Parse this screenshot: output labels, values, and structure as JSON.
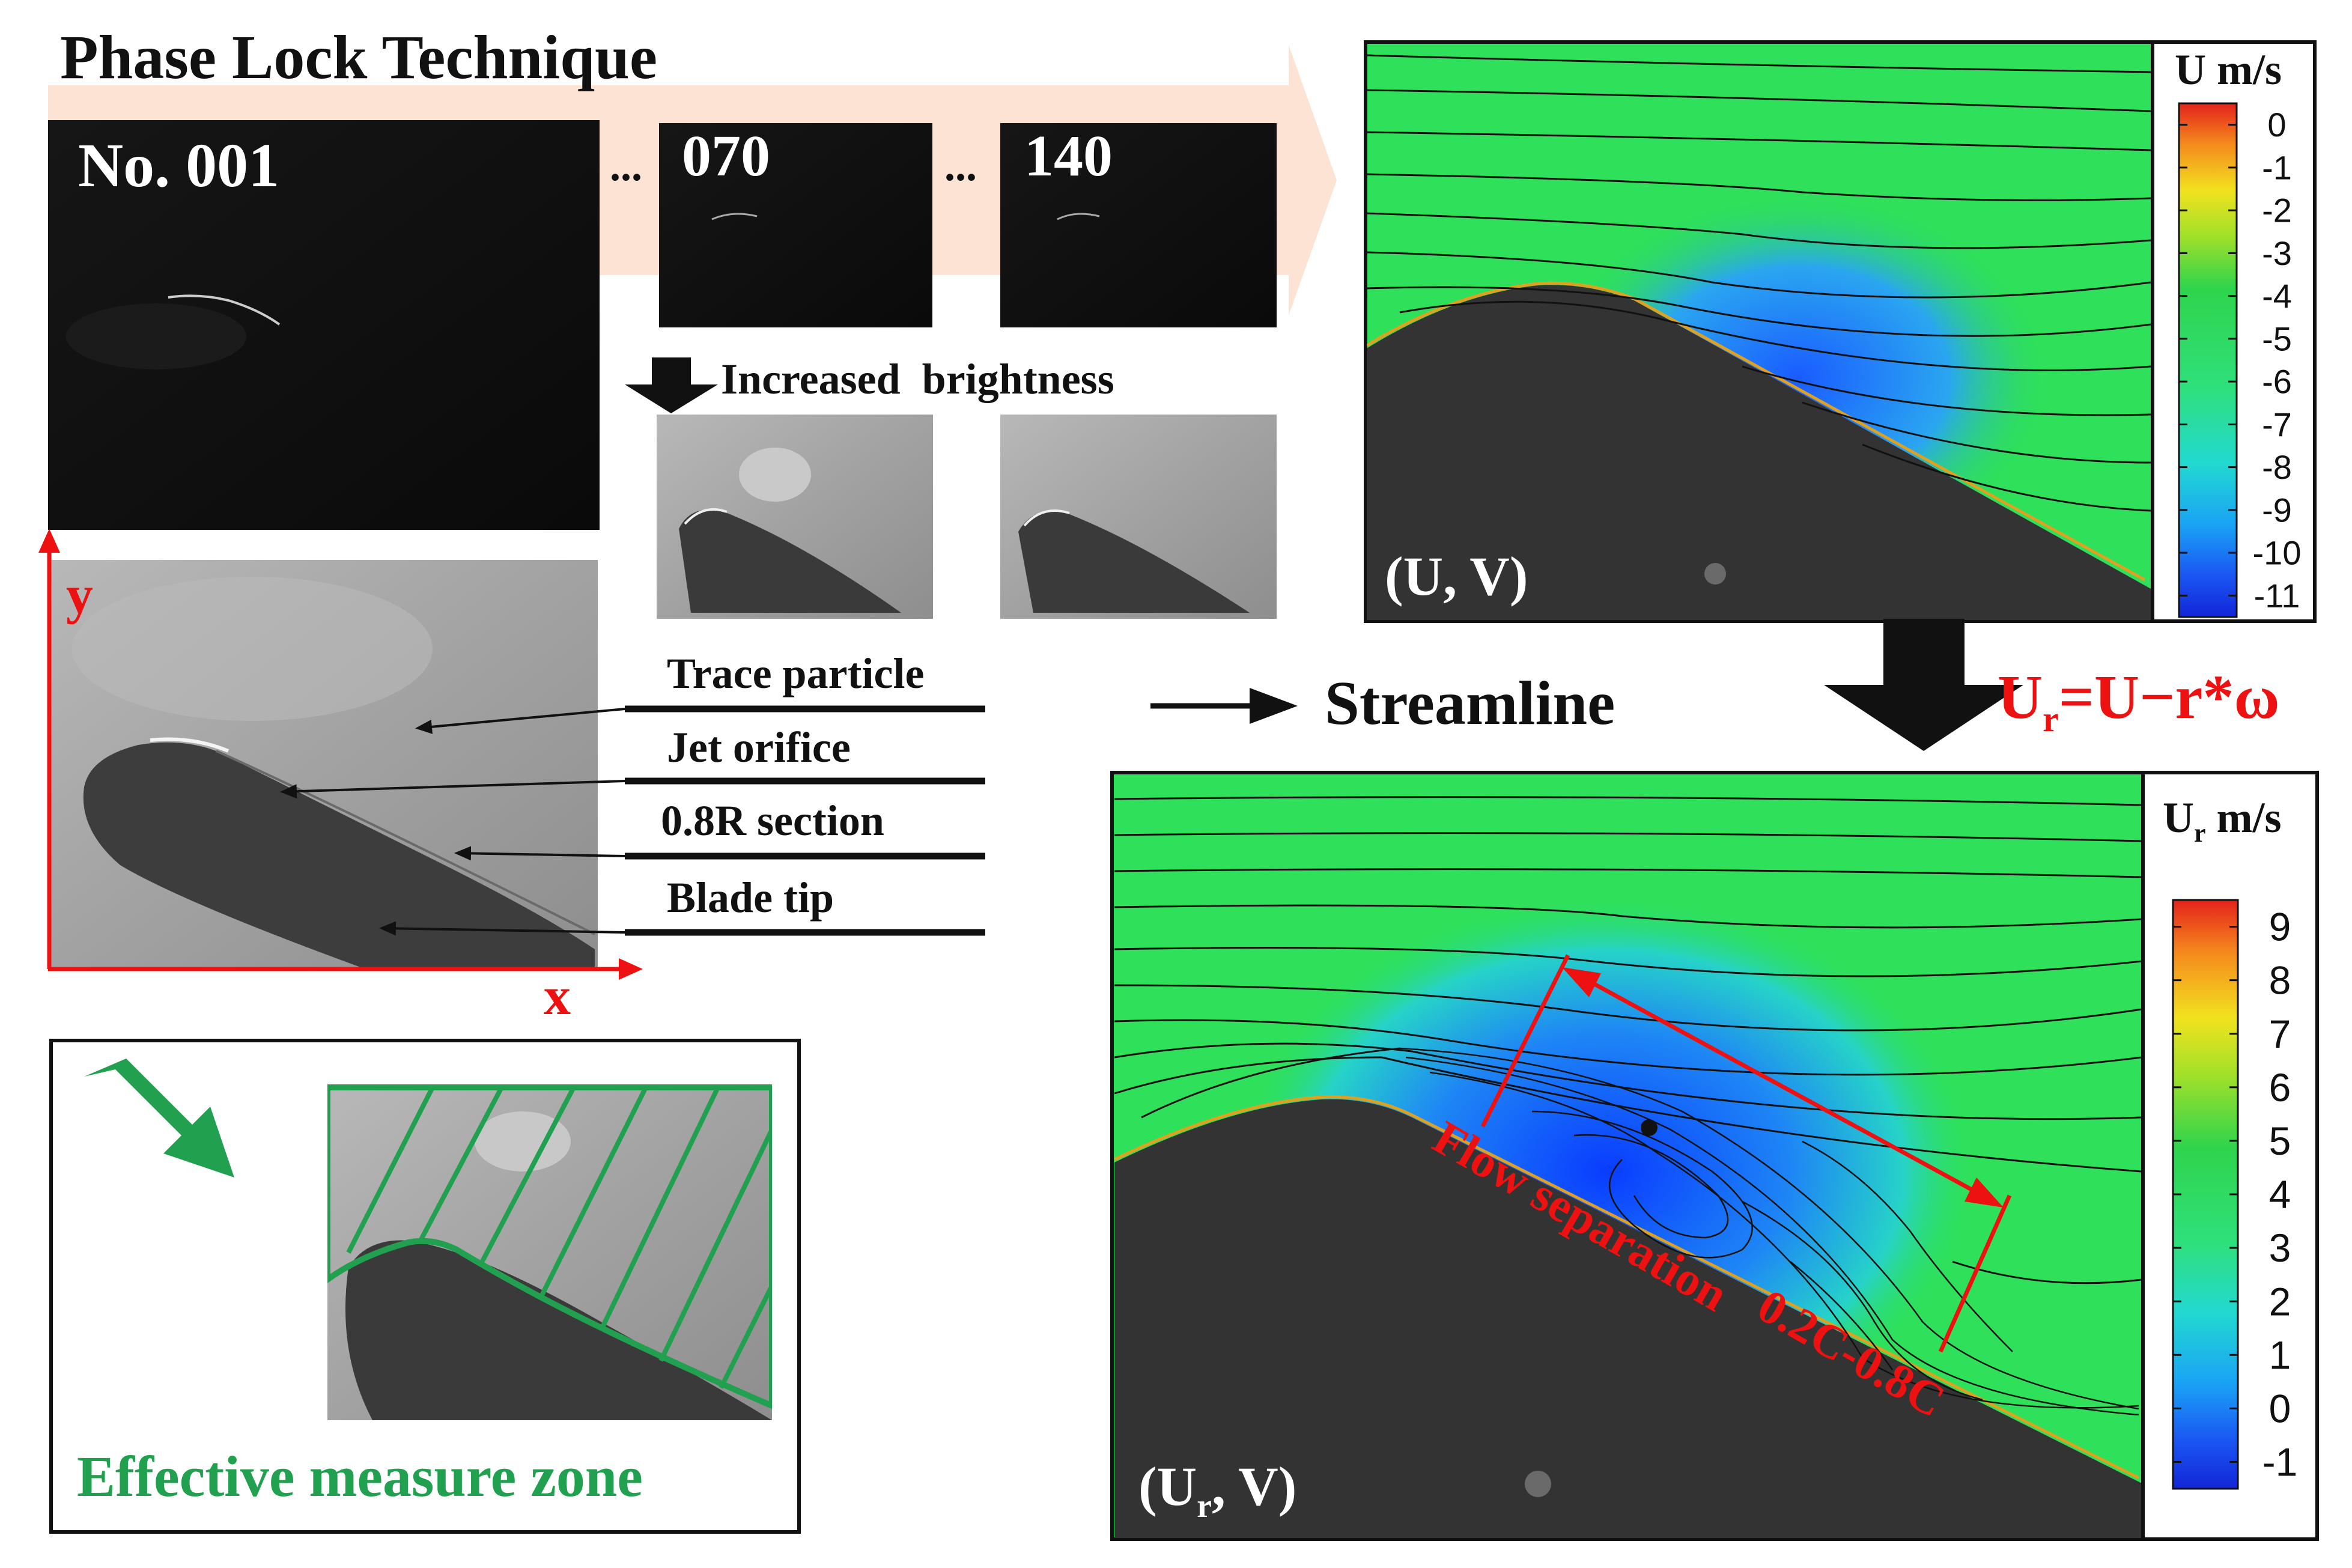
{
  "title": "Phase Lock Technique",
  "frames": [
    {
      "label": "No. 001"
    },
    {
      "label": "070"
    },
    {
      "label": "140"
    }
  ],
  "ellipsis": "...",
  "brightness_label": "Increased  brightness",
  "axes": {
    "x": "x",
    "y": "y"
  },
  "annotations": [
    "Trace particle",
    "Jet orifice",
    "0.8R section",
    "Blade tip"
  ],
  "streamline_legend": "Streamline",
  "measure_zone_label": "Effective measure zone",
  "formula": {
    "main": "U",
    "sub": "r",
    "rest": "=U−r*ω"
  },
  "top_plot": {
    "panel_label": "(U, V)",
    "colorbar_title": "U m/s",
    "ticks": [
      "0",
      "-1",
      "-2",
      "-3",
      "-4",
      "-5",
      "-6",
      "-7",
      "-8",
      "-9",
      "-10",
      "-11"
    ]
  },
  "bottom_plot": {
    "panel_label_main": "(U",
    "panel_label_sub": "r",
    "panel_label_rest": ", V)",
    "colorbar_title_main": "U",
    "colorbar_title_sub": "r",
    "colorbar_title_rest": " m/s",
    "ticks": [
      "9",
      "8",
      "7",
      "6",
      "5",
      "4",
      "3",
      "2",
      "1",
      "0",
      "-1"
    ],
    "separation_label": "Flow separation",
    "chord_label": "0.2C-0.8C"
  },
  "colors": {
    "accent_red": "#ee1111",
    "accent_green": "#21a150",
    "flow_green": "#2ee05a",
    "flow_blue": "#1a6fff",
    "arrow_band": "#fde3d3"
  }
}
